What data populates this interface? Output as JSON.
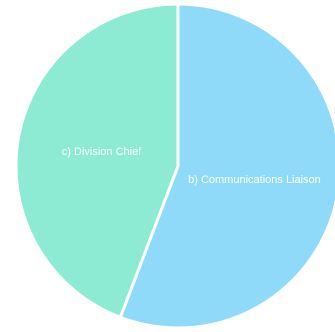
{
  "chart_data": {
    "type": "pie",
    "slices": [
      {
        "label": "b) Communications Liaison",
        "value": 55.8,
        "color": "#8fdaf9"
      },
      {
        "label": "c) Division Chief",
        "value": 44.2,
        "color": "#8debd4"
      }
    ],
    "title": "",
    "legend": "none",
    "slice_border_color": "#ffffff"
  }
}
